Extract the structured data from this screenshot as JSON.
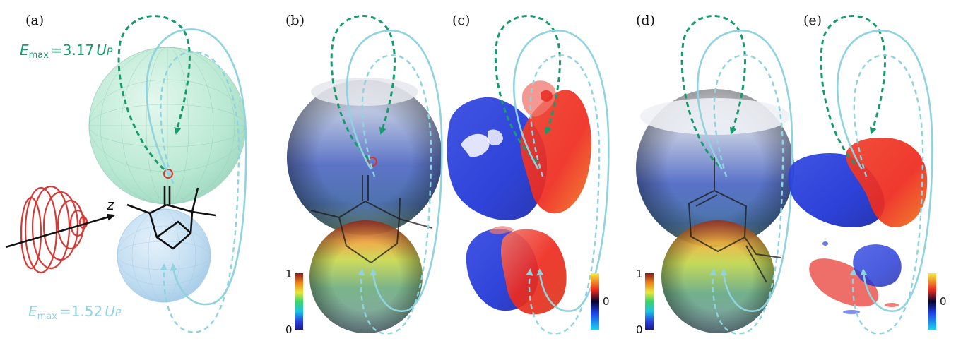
{
  "panels": [
    {
      "id": "a",
      "label": "(a)"
    },
    {
      "id": "b",
      "label": "(b)"
    },
    {
      "id": "c",
      "label": "(c)"
    },
    {
      "id": "d",
      "label": "(d)"
    },
    {
      "id": "e",
      "label": "(e)"
    }
  ],
  "annotations": {
    "emax_upper": {
      "symbol": "E",
      "subscript": "max",
      "value": "=3.17",
      "unit": "U",
      "unit_sub": "P",
      "color": "#179b6e"
    },
    "emax_lower": {
      "symbol": "E",
      "subscript": "max",
      "value": "=1.52",
      "unit": "U",
      "unit_sub": "P",
      "color": "#8fd3df"
    },
    "axis_label": "z"
  },
  "colorbars": {
    "magnitude": {
      "max_label": "1",
      "min_label": "0"
    },
    "signed": {
      "mid_label": "0"
    }
  },
  "colors": {
    "green_traj": "#179b6e",
    "cyan_traj": "#7fcfd6",
    "red_lobe": "#ee2a1f",
    "blue_lobe": "#1d33d6",
    "laser": "#d43a36"
  }
}
